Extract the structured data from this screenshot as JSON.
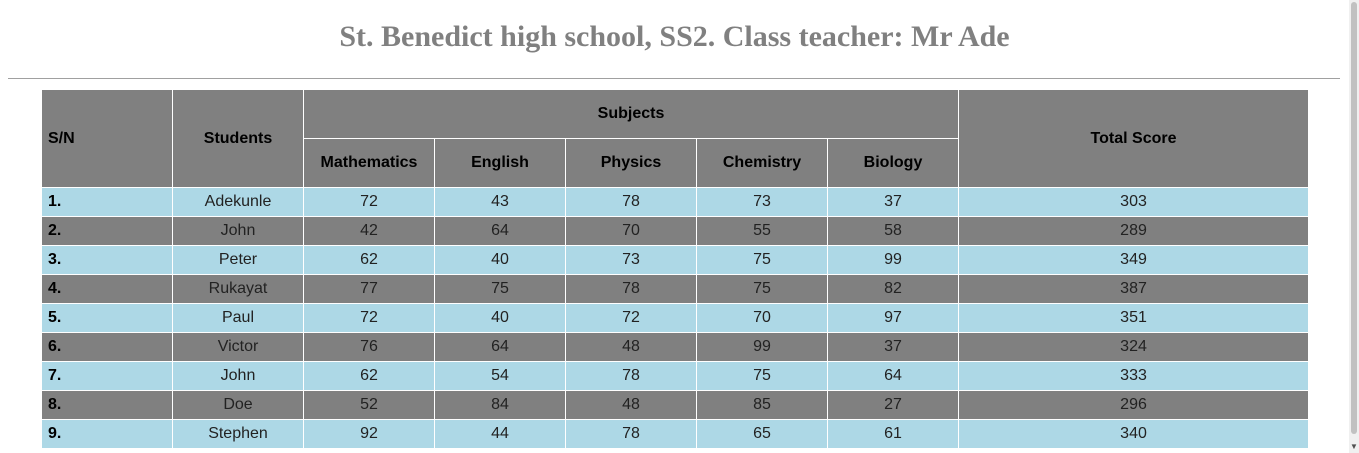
{
  "page": {
    "title": "St. Benedict high school, SS2. Class teacher: Mr Ade"
  },
  "table": {
    "headers": {
      "sn": "S/N",
      "students": "Students",
      "subjects_group": "Subjects",
      "total": "Total Score",
      "subjects": [
        "Mathematics",
        "English",
        "Physics",
        "Chemistry",
        "Biology"
      ]
    },
    "rows": [
      {
        "sn": "1.",
        "student": "Adekunle",
        "scores": [
          "72",
          "43",
          "78",
          "73",
          "37"
        ],
        "total": "303"
      },
      {
        "sn": "2.",
        "student": "John",
        "scores": [
          "42",
          "64",
          "70",
          "55",
          "58"
        ],
        "total": "289"
      },
      {
        "sn": "3.",
        "student": "Peter",
        "scores": [
          "62",
          "40",
          "73",
          "75",
          "99"
        ],
        "total": "349"
      },
      {
        "sn": "4.",
        "student": "Rukayat",
        "scores": [
          "77",
          "75",
          "78",
          "75",
          "82"
        ],
        "total": "387"
      },
      {
        "sn": "5.",
        "student": "Paul",
        "scores": [
          "72",
          "40",
          "72",
          "70",
          "97"
        ],
        "total": "351"
      },
      {
        "sn": "6.",
        "student": "Victor",
        "scores": [
          "76",
          "64",
          "48",
          "99",
          "37"
        ],
        "total": "324"
      },
      {
        "sn": "7.",
        "student": "John",
        "scores": [
          "62",
          "54",
          "78",
          "75",
          "64"
        ],
        "total": "333"
      },
      {
        "sn": "8.",
        "student": "Doe",
        "scores": [
          "52",
          "84",
          "48",
          "85",
          "27"
        ],
        "total": "296"
      },
      {
        "sn": "9.",
        "student": "Stephen",
        "scores": [
          "92",
          "44",
          "78",
          "65",
          "61"
        ],
        "total": "340"
      }
    ]
  },
  "colors": {
    "header_bg": "#808080",
    "row_light": "#add8e6",
    "row_dark": "#808080",
    "title": "#808080"
  }
}
